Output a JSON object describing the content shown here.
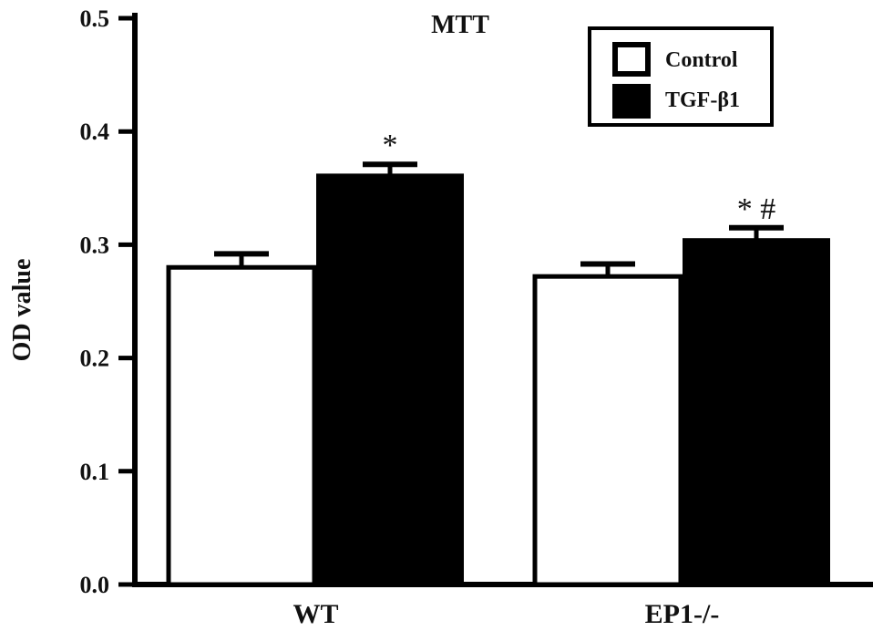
{
  "chart_data": {
    "type": "bar",
    "title": "MTT",
    "xlabel": "",
    "ylabel": "OD value",
    "ylim": [
      0,
      0.5
    ],
    "yticks": [
      "0.0",
      "0.1",
      "0.2",
      "0.3",
      "0.4",
      "0.5"
    ],
    "categories": [
      "WT",
      "EP1-/-"
    ],
    "series": [
      {
        "name": "Control",
        "values": [
          0.28,
          0.272
        ],
        "errors": [
          0.012,
          0.011
        ],
        "color": "#ffffff",
        "annotations": [
          "",
          ""
        ]
      },
      {
        "name": "TGF-β1",
        "values": [
          0.362,
          0.305
        ],
        "errors": [
          0.009,
          0.01
        ],
        "color": "#000000",
        "annotations": [
          "*",
          "* #"
        ]
      }
    ],
    "legend_position": "top-right",
    "grid": false
  }
}
